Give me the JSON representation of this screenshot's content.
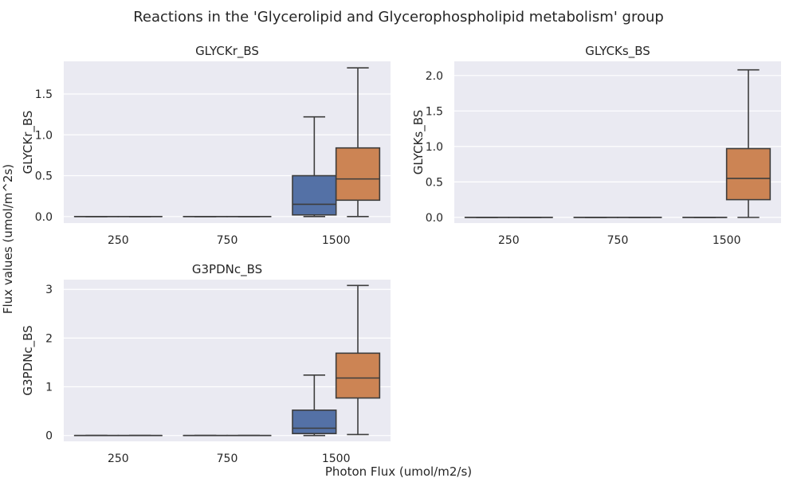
{
  "figure": {
    "title": "Reactions in the 'Glycerolipid and Glycerophospholipid metabolism' group",
    "xlabel": "Photon Flux (umol/m2/s)",
    "ylabel": "Flux values (umol/m^2s)"
  },
  "colors": {
    "blue": "#5471a6",
    "orange": "#cc8454",
    "line": "#3d3d3d",
    "panel_bg": "#eaeaf2",
    "grid": "#ffffff"
  },
  "chart_data": [
    {
      "type": "box",
      "title": "GLYCKr_BS",
      "ylabel": "GLYCKr_BS",
      "categories": [
        "250",
        "750",
        "1500"
      ],
      "ylim": [
        -0.08,
        1.9
      ],
      "yticks": [
        0.0,
        0.5,
        1.0,
        1.5
      ],
      "ytick_labels": [
        "0.0",
        "0.5",
        "1.0",
        "1.5"
      ],
      "grid": true,
      "boxes": [
        {
          "category": "250",
          "group": "blue",
          "min": 0,
          "q1": 0,
          "median": 0,
          "q3": 0,
          "max": 0
        },
        {
          "category": "250",
          "group": "orange",
          "min": 0,
          "q1": 0,
          "median": 0,
          "q3": 0,
          "max": 0
        },
        {
          "category": "750",
          "group": "blue",
          "min": 0,
          "q1": 0,
          "median": 0,
          "q3": 0,
          "max": 0
        },
        {
          "category": "750",
          "group": "orange",
          "min": 0,
          "q1": 0,
          "median": 0,
          "q3": 0,
          "max": 0
        },
        {
          "category": "1500",
          "group": "blue",
          "min": 0.0,
          "q1": 0.02,
          "median": 0.15,
          "q3": 0.5,
          "max": 1.22
        },
        {
          "category": "1500",
          "group": "orange",
          "min": 0.0,
          "q1": 0.2,
          "median": 0.46,
          "q3": 0.84,
          "max": 1.82
        }
      ]
    },
    {
      "type": "box",
      "title": "GLYCKs_BS",
      "ylabel": "GLYCKs_BS",
      "categories": [
        "250",
        "750",
        "1500"
      ],
      "ylim": [
        -0.08,
        2.2
      ],
      "yticks": [
        0.0,
        0.5,
        1.0,
        1.5,
        2.0
      ],
      "ytick_labels": [
        "0.0",
        "0.5",
        "1.0",
        "1.5",
        "2.0"
      ],
      "grid": true,
      "boxes": [
        {
          "category": "250",
          "group": "blue",
          "min": 0,
          "q1": 0,
          "median": 0,
          "q3": 0,
          "max": 0
        },
        {
          "category": "250",
          "group": "orange",
          "min": 0,
          "q1": 0,
          "median": 0,
          "q3": 0,
          "max": 0
        },
        {
          "category": "750",
          "group": "blue",
          "min": 0,
          "q1": 0,
          "median": 0,
          "q3": 0,
          "max": 0
        },
        {
          "category": "750",
          "group": "orange",
          "min": 0,
          "q1": 0,
          "median": 0,
          "q3": 0,
          "max": 0
        },
        {
          "category": "1500",
          "group": "blue",
          "min": 0,
          "q1": 0,
          "median": 0,
          "q3": 0,
          "max": 0
        },
        {
          "category": "1500",
          "group": "orange",
          "min": 0.0,
          "q1": 0.25,
          "median": 0.55,
          "q3": 0.97,
          "max": 2.08
        }
      ]
    },
    {
      "type": "box",
      "title": "G3PDNc_BS",
      "ylabel": "G3PDNc_BS",
      "categories": [
        "250",
        "750",
        "1500"
      ],
      "ylim": [
        -0.12,
        3.2
      ],
      "yticks": [
        0,
        1,
        2,
        3
      ],
      "ytick_labels": [
        "0",
        "1",
        "2",
        "3"
      ],
      "grid": true,
      "boxes": [
        {
          "category": "250",
          "group": "blue",
          "min": 0,
          "q1": 0,
          "median": 0,
          "q3": 0,
          "max": 0
        },
        {
          "category": "250",
          "group": "orange",
          "min": 0,
          "q1": 0,
          "median": 0,
          "q3": 0,
          "max": 0
        },
        {
          "category": "750",
          "group": "blue",
          "min": 0,
          "q1": 0,
          "median": 0,
          "q3": 0,
          "max": 0
        },
        {
          "category": "750",
          "group": "orange",
          "min": 0,
          "q1": 0,
          "median": 0,
          "q3": 0,
          "max": 0
        },
        {
          "category": "1500",
          "group": "blue",
          "min": 0.0,
          "q1": 0.04,
          "median": 0.15,
          "q3": 0.52,
          "max": 1.24
        },
        {
          "category": "1500",
          "group": "orange",
          "min": 0.02,
          "q1": 0.77,
          "median": 1.18,
          "q3": 1.69,
          "max": 3.08
        }
      ]
    }
  ]
}
